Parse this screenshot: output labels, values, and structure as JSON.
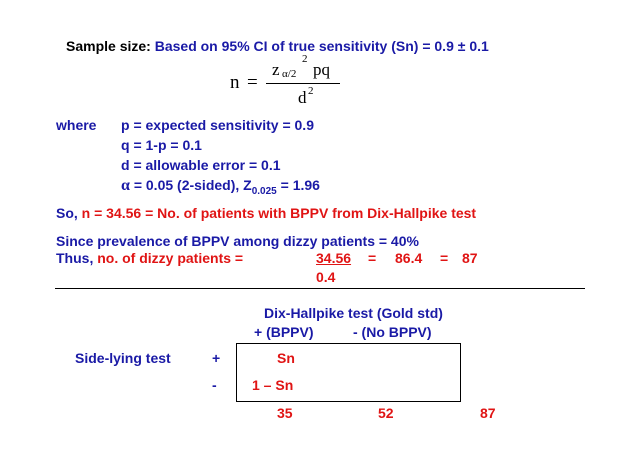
{
  "header": {
    "label": "Sample size:",
    "text": "Based on 95% CI of true sensitivity (Sn) =  0.9 ± 0.1"
  },
  "formula": {
    "lhs": "n",
    "equals": "=",
    "z": "z",
    "z_sub": "α/2",
    "exponent": "2",
    "pq": "pq",
    "denominator": "d",
    "denominator_exp": "2"
  },
  "definitions": {
    "where": "where",
    "p_line": "p  =  expected sensitivity = 0.9",
    "q_line": "q  =  1-p  =  0.1",
    "d_line": "d  =  allowable error = 0.1",
    "alpha_symbol": "α",
    "alpha_text": "=  0.05 (2-sided),  Z",
    "z_sub": "0.025",
    "z_value": " = 1.96"
  },
  "so_line": {
    "prefix": "So,",
    "text": "n  =  34.56  =  No. of patients with BPPV from Dix-Hallpike test"
  },
  "prevalence": {
    "line1": "Since prevalence of BPPV among dizzy patients = 40%",
    "thus": "Thus,",
    "label": "no. of dizzy patients   =",
    "numerator": "34.56",
    "equals1": "=",
    "result1": "86.4",
    "equals2": "=",
    "result2": "87",
    "denominator": "0.4"
  },
  "table": {
    "title": "Dix-Hallpike test (Gold std)",
    "col_pos": "+ (BPPV)",
    "col_neg": "- (No BPPV)",
    "row_label": "Side-lying test",
    "row_pos_sign": "+",
    "row_neg_sign": "-",
    "cell_sn": "Sn",
    "cell_one_minus_sn": "1 – Sn",
    "total_pos": "35",
    "total_neg": "52",
    "total_all": "87"
  }
}
